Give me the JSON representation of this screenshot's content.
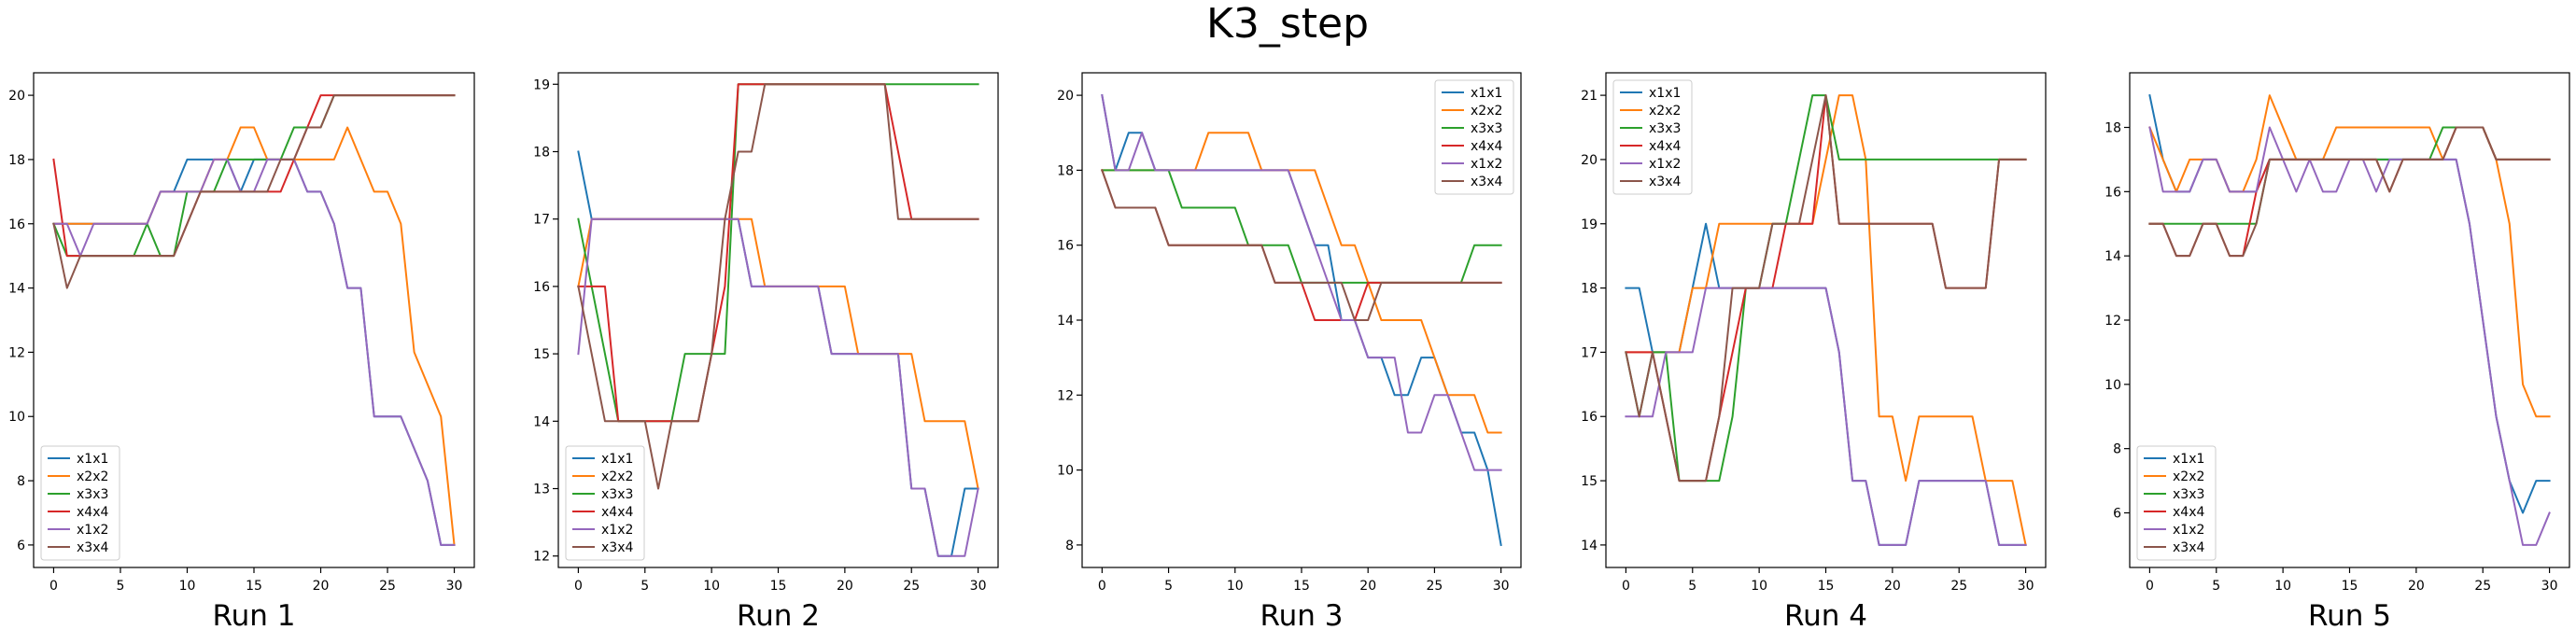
{
  "figure": {
    "title": "K3_step"
  },
  "colors": {
    "x1x1": "#1f77b4",
    "x2x2": "#ff7f0e",
    "x3x3": "#2ca02c",
    "x4x4": "#d62728",
    "x1x2": "#9467bd",
    "x3x4": "#8c564b"
  },
  "chart_data": [
    {
      "type": "line",
      "title": "",
      "xlabel": "Run 1",
      "ylabel": "",
      "legend_position": "lower-left",
      "xlim": [
        -1.5,
        31.5
      ],
      "ylim": [
        5.3,
        20.7
      ],
      "xticks": [
        0,
        5,
        10,
        15,
        20,
        25,
        30
      ],
      "yticks": [
        6,
        8,
        10,
        12,
        14,
        16,
        18,
        20
      ],
      "series": [
        {
          "name": "x1x1",
          "values": [
            16,
            16,
            16,
            16,
            16,
            16,
            16,
            16,
            17,
            17,
            18,
            18,
            18,
            18,
            17,
            18,
            18,
            18,
            18,
            17,
            17,
            16,
            14,
            14,
            10,
            10,
            10,
            9,
            8,
            6,
            6
          ]
        },
        {
          "name": "x2x2",
          "values": [
            16,
            16,
            16,
            16,
            16,
            16,
            16,
            16,
            17,
            17,
            17,
            17,
            18,
            18,
            19,
            19,
            18,
            18,
            18,
            18,
            18,
            18,
            19,
            18,
            17,
            17,
            16,
            12,
            11,
            10,
            6
          ]
        },
        {
          "name": "x3x3",
          "values": [
            16,
            15,
            15,
            15,
            15,
            15,
            15,
            16,
            15,
            15,
            17,
            17,
            17,
            18,
            18,
            18,
            18,
            18,
            19,
            19,
            19,
            20,
            20,
            20,
            20,
            20,
            20,
            20,
            20,
            20,
            20
          ]
        },
        {
          "name": "x4x4",
          "values": [
            18,
            15,
            15,
            15,
            15,
            15,
            15,
            15,
            15,
            15,
            16,
            17,
            17,
            17,
            17,
            17,
            17,
            17,
            18,
            19,
            20,
            20,
            20,
            20,
            20,
            20,
            20,
            20,
            20,
            20,
            20
          ]
        },
        {
          "name": "x1x2",
          "values": [
            16,
            16,
            15,
            16,
            16,
            16,
            16,
            16,
            17,
            17,
            17,
            17,
            18,
            18,
            17,
            17,
            18,
            18,
            18,
            17,
            17,
            16,
            14,
            14,
            10,
            10,
            10,
            9,
            8,
            6,
            6
          ]
        },
        {
          "name": "x3x4",
          "values": [
            16,
            14,
            15,
            15,
            15,
            15,
            15,
            15,
            15,
            15,
            16,
            17,
            17,
            17,
            17,
            17,
            17,
            18,
            18,
            19,
            19,
            20,
            20,
            20,
            20,
            20,
            20,
            20,
            20,
            20,
            20
          ]
        }
      ]
    },
    {
      "type": "line",
      "title": "",
      "xlabel": "Run 2",
      "ylabel": "",
      "legend_position": "lower-left",
      "xlim": [
        -1.5,
        31.5
      ],
      "ylim": [
        11.83,
        19.17
      ],
      "xticks": [
        0,
        5,
        10,
        15,
        20,
        25,
        30
      ],
      "yticks": [
        12,
        13,
        14,
        15,
        16,
        17,
        18,
        19
      ],
      "series": [
        {
          "name": "x1x1",
          "values": [
            18,
            17,
            17,
            17,
            17,
            17,
            17,
            17,
            17,
            17,
            17,
            17,
            17,
            16,
            16,
            16,
            16,
            16,
            16,
            15,
            15,
            15,
            15,
            15,
            15,
            13,
            13,
            12,
            12,
            13,
            13
          ]
        },
        {
          "name": "x2x2",
          "values": [
            16,
            17,
            17,
            17,
            17,
            17,
            17,
            17,
            17,
            17,
            17,
            17,
            17,
            17,
            16,
            16,
            16,
            16,
            16,
            16,
            16,
            15,
            15,
            15,
            15,
            15,
            14,
            14,
            14,
            14,
            13
          ]
        },
        {
          "name": "x3x3",
          "values": [
            17,
            16,
            15,
            14,
            14,
            14,
            14,
            14,
            15,
            15,
            15,
            15,
            19,
            19,
            19,
            19,
            19,
            19,
            19,
            19,
            19,
            19,
            19,
            19,
            19,
            19,
            19,
            19,
            19,
            19,
            19
          ]
        },
        {
          "name": "x4x4",
          "values": [
            16,
            16,
            16,
            14,
            14,
            14,
            14,
            14,
            14,
            14,
            15,
            16,
            19,
            19,
            19,
            19,
            19,
            19,
            19,
            19,
            19,
            19,
            19,
            19,
            18,
            17,
            17,
            17,
            17,
            17,
            17
          ]
        },
        {
          "name": "x1x2",
          "values": [
            15,
            17,
            17,
            17,
            17,
            17,
            17,
            17,
            17,
            17,
            17,
            17,
            17,
            16,
            16,
            16,
            16,
            16,
            16,
            15,
            15,
            15,
            15,
            15,
            15,
            13,
            13,
            12,
            12,
            12,
            13
          ]
        },
        {
          "name": "x3x4",
          "values": [
            16,
            15,
            14,
            14,
            14,
            14,
            13,
            14,
            14,
            14,
            15,
            17,
            18,
            18,
            19,
            19,
            19,
            19,
            19,
            19,
            19,
            19,
            19,
            19,
            17,
            17,
            17,
            17,
            17,
            17,
            17
          ]
        }
      ]
    },
    {
      "type": "line",
      "title": "",
      "xlabel": "Run 3",
      "ylabel": "",
      "legend_position": "upper-right",
      "xlim": [
        -1.5,
        31.5
      ],
      "ylim": [
        7.4,
        20.6
      ],
      "xticks": [
        0,
        5,
        10,
        15,
        20,
        25,
        30
      ],
      "yticks": [
        8,
        10,
        12,
        14,
        16,
        18,
        20
      ],
      "series": [
        {
          "name": "x1x1",
          "values": [
            20,
            18,
            19,
            19,
            18,
            18,
            18,
            18,
            18,
            18,
            18,
            18,
            18,
            18,
            18,
            17,
            16,
            16,
            14,
            14,
            13,
            13,
            12,
            12,
            13,
            13,
            12,
            11,
            11,
            10,
            8
          ]
        },
        {
          "name": "x2x2",
          "values": [
            18,
            18,
            18,
            18,
            18,
            18,
            18,
            18,
            19,
            19,
            19,
            19,
            18,
            18,
            18,
            18,
            18,
            17,
            16,
            16,
            15,
            14,
            14,
            14,
            14,
            13,
            12,
            12,
            12,
            11,
            11
          ]
        },
        {
          "name": "x3x3",
          "values": [
            18,
            18,
            18,
            18,
            18,
            18,
            17,
            17,
            17,
            17,
            17,
            16,
            16,
            16,
            16,
            15,
            15,
            15,
            15,
            15,
            15,
            15,
            15,
            15,
            15,
            15,
            15,
            15,
            16,
            16,
            16
          ]
        },
        {
          "name": "x4x4",
          "values": [
            18,
            17,
            17,
            17,
            17,
            16,
            16,
            16,
            16,
            16,
            16,
            16,
            16,
            15,
            15,
            15,
            14,
            14,
            14,
            14,
            15,
            15,
            15,
            15,
            15,
            15,
            15,
            15,
            15,
            15,
            15
          ]
        },
        {
          "name": "x1x2",
          "values": [
            20,
            18,
            18,
            19,
            18,
            18,
            18,
            18,
            18,
            18,
            18,
            18,
            18,
            18,
            18,
            17,
            16,
            15,
            14,
            14,
            13,
            13,
            13,
            11,
            11,
            12,
            12,
            11,
            10,
            10,
            10
          ]
        },
        {
          "name": "x3x4",
          "values": [
            18,
            17,
            17,
            17,
            17,
            16,
            16,
            16,
            16,
            16,
            16,
            16,
            16,
            15,
            15,
            15,
            15,
            15,
            15,
            14,
            14,
            15,
            15,
            15,
            15,
            15,
            15,
            15,
            15,
            15,
            15
          ]
        }
      ]
    },
    {
      "type": "line",
      "title": "",
      "xlabel": "Run 4",
      "ylabel": "",
      "legend_position": "upper-left",
      "xlim": [
        -1.5,
        31.5
      ],
      "ylim": [
        13.65,
        21.35
      ],
      "xticks": [
        0,
        5,
        10,
        15,
        20,
        25,
        30
      ],
      "yticks": [
        14,
        15,
        16,
        17,
        18,
        19,
        20,
        21
      ],
      "series": [
        {
          "name": "x1x1",
          "values": [
            18,
            18,
            17,
            17,
            17,
            18,
            19,
            18,
            18,
            18,
            18,
            18,
            18,
            18,
            18,
            18,
            17,
            15,
            15,
            14,
            14,
            14,
            15,
            15,
            15,
            15,
            15,
            15,
            14,
            14,
            14
          ]
        },
        {
          "name": "x2x2",
          "values": [
            17,
            17,
            17,
            17,
            17,
            18,
            18,
            19,
            19,
            19,
            19,
            19,
            19,
            19,
            19,
            20,
            21,
            21,
            20,
            16,
            16,
            15,
            16,
            16,
            16,
            16,
            16,
            15,
            15,
            15,
            14
          ]
        },
        {
          "name": "x3x3",
          "values": [
            17,
            16,
            17,
            17,
            15,
            15,
            15,
            15,
            16,
            18,
            18,
            19,
            19,
            20,
            21,
            21,
            20,
            20,
            20,
            20,
            20,
            20,
            20,
            20,
            20,
            20,
            20,
            20,
            20,
            20,
            20
          ]
        },
        {
          "name": "x4x4",
          "values": [
            17,
            17,
            17,
            16,
            15,
            15,
            15,
            16,
            17,
            18,
            18,
            18,
            19,
            19,
            19,
            21,
            19,
            19,
            19,
            19,
            19,
            19,
            19,
            19,
            18,
            18,
            18,
            18,
            20,
            20,
            20
          ]
        },
        {
          "name": "x1x2",
          "values": [
            16,
            16,
            16,
            17,
            17,
            17,
            18,
            18,
            18,
            18,
            18,
            18,
            18,
            18,
            18,
            18,
            17,
            15,
            15,
            14,
            14,
            14,
            15,
            15,
            15,
            15,
            15,
            15,
            14,
            14,
            14
          ]
        },
        {
          "name": "x3x4",
          "values": [
            17,
            16,
            17,
            16,
            15,
            15,
            15,
            16,
            18,
            18,
            18,
            19,
            19,
            19,
            20,
            21,
            19,
            19,
            19,
            19,
            19,
            19,
            19,
            19,
            18,
            18,
            18,
            18,
            20,
            20,
            20
          ]
        }
      ]
    },
    {
      "type": "line",
      "title": "",
      "xlabel": "Run 5",
      "ylabel": "",
      "legend_position": "lower-left",
      "xlim": [
        -1.5,
        31.5
      ],
      "ylim": [
        4.3,
        19.7
      ],
      "xticks": [
        0,
        5,
        10,
        15,
        20,
        25,
        30
      ],
      "yticks": [
        6,
        8,
        10,
        12,
        14,
        16,
        18
      ],
      "series": [
        {
          "name": "x1x1",
          "values": [
            19,
            17,
            16,
            16,
            17,
            17,
            16,
            16,
            16,
            17,
            17,
            17,
            17,
            17,
            17,
            17,
            17,
            17,
            17,
            17,
            17,
            17,
            17,
            17,
            15,
            12,
            9,
            7,
            6,
            7,
            7
          ]
        },
        {
          "name": "x2x2",
          "values": [
            18,
            17,
            16,
            17,
            17,
            17,
            16,
            16,
            17,
            19,
            18,
            17,
            17,
            17,
            18,
            18,
            18,
            18,
            18,
            18,
            18,
            18,
            17,
            18,
            18,
            18,
            17,
            15,
            10,
            9,
            9
          ]
        },
        {
          "name": "x3x3",
          "values": [
            15,
            15,
            15,
            15,
            15,
            15,
            15,
            15,
            15,
            17,
            17,
            17,
            17,
            17,
            17,
            17,
            17,
            17,
            17,
            17,
            17,
            17,
            18,
            18,
            18,
            18,
            17,
            17,
            17,
            17,
            17
          ]
        },
        {
          "name": "x4x4",
          "values": [
            15,
            15,
            14,
            14,
            15,
            15,
            14,
            14,
            16,
            17,
            17,
            17,
            17,
            17,
            17,
            17,
            17,
            17,
            16,
            17,
            17,
            17,
            17,
            18,
            18,
            18,
            17,
            17,
            17,
            17,
            17
          ]
        },
        {
          "name": "x1x2",
          "values": [
            18,
            16,
            16,
            16,
            17,
            17,
            16,
            16,
            16,
            18,
            17,
            16,
            17,
            16,
            16,
            17,
            17,
            16,
            17,
            17,
            17,
            17,
            17,
            17,
            15,
            12,
            9,
            7,
            5,
            5,
            6
          ]
        },
        {
          "name": "x3x4",
          "values": [
            15,
            15,
            14,
            14,
            15,
            15,
            14,
            14,
            15,
            17,
            17,
            17,
            17,
            17,
            17,
            17,
            17,
            17,
            16,
            17,
            17,
            17,
            17,
            18,
            18,
            18,
            17,
            17,
            17,
            17,
            17
          ]
        }
      ]
    }
  ]
}
